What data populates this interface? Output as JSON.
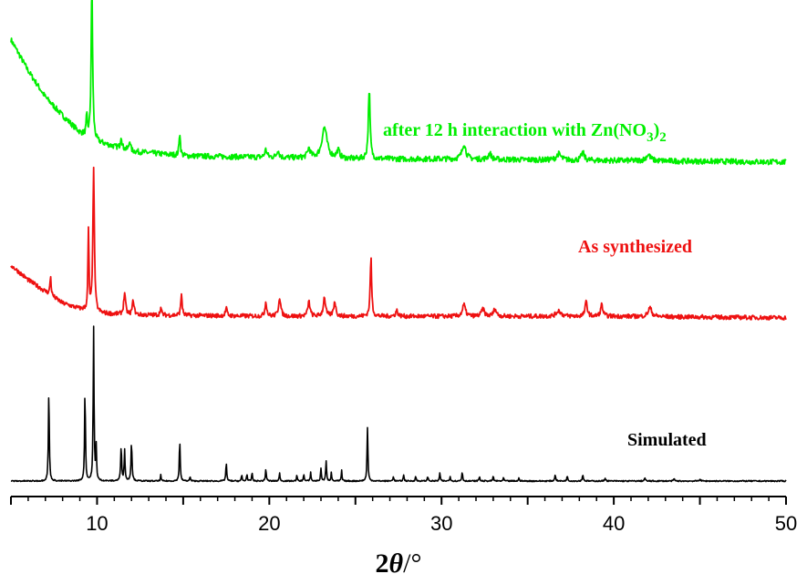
{
  "chart_data": {
    "type": "line",
    "title": "",
    "xlabel_main": "2",
    "xlabel_theta": "θ",
    "xlabel_unit": "/°",
    "ylabel": "",
    "xlim": [
      5,
      50
    ],
    "x_ticks": [
      10,
      20,
      30,
      40,
      50
    ],
    "x_minor_step": 1,
    "y_axis_shown": false,
    "grid": false,
    "series": [
      {
        "name": "after 12 h interaction with Zn(NO3)2",
        "label_main": "after 12 h interaction with Zn(NO",
        "label_sub": "3",
        "label_close": ")",
        "label_sub2": "2",
        "color": "#00ee00",
        "baseline": [
          [
            5,
            0.82
          ],
          [
            6,
            0.62
          ],
          [
            7,
            0.45
          ],
          [
            8,
            0.33
          ],
          [
            9,
            0.22
          ],
          [
            10,
            0.16
          ],
          [
            12,
            0.1
          ],
          [
            15,
            0.07
          ],
          [
            20,
            0.06
          ],
          [
            25,
            0.05
          ],
          [
            30,
            0.05
          ],
          [
            40,
            0.04
          ],
          [
            50,
            0.03
          ]
        ],
        "peaks": [
          [
            9.4,
            0.12,
            0.08
          ],
          [
            9.7,
            1.0,
            0.1
          ],
          [
            11.4,
            0.08,
            0.1
          ],
          [
            11.9,
            0.07,
            0.1
          ],
          [
            14.8,
            0.15,
            0.09
          ],
          [
            19.8,
            0.05,
            0.15
          ],
          [
            20.5,
            0.05,
            0.15
          ],
          [
            22.3,
            0.06,
            0.2
          ],
          [
            23.2,
            0.2,
            0.35
          ],
          [
            24.0,
            0.05,
            0.2
          ],
          [
            25.8,
            0.45,
            0.12
          ],
          [
            31.3,
            0.1,
            0.25
          ],
          [
            32.8,
            0.04,
            0.2
          ],
          [
            36.8,
            0.04,
            0.3
          ],
          [
            38.2,
            0.05,
            0.2
          ],
          [
            42.0,
            0.04,
            0.3
          ]
        ],
        "noise": 0.018
      },
      {
        "name": "As synthesized",
        "color": "#ee1111",
        "baseline": [
          [
            5,
            0.38
          ],
          [
            6,
            0.28
          ],
          [
            7,
            0.2
          ],
          [
            8,
            0.12
          ],
          [
            9,
            0.08
          ],
          [
            10,
            0.05
          ],
          [
            12,
            0.04
          ],
          [
            20,
            0.03
          ],
          [
            30,
            0.03
          ],
          [
            40,
            0.03
          ],
          [
            50,
            0.02
          ]
        ],
        "peaks": [
          [
            7.3,
            0.13,
            0.08
          ],
          [
            9.5,
            0.55,
            0.07
          ],
          [
            9.8,
            1.0,
            0.1
          ],
          [
            11.6,
            0.15,
            0.12
          ],
          [
            12.1,
            0.1,
            0.12
          ],
          [
            13.7,
            0.05,
            0.1
          ],
          [
            14.9,
            0.15,
            0.09
          ],
          [
            17.5,
            0.05,
            0.12
          ],
          [
            19.8,
            0.1,
            0.12
          ],
          [
            20.6,
            0.13,
            0.15
          ],
          [
            22.3,
            0.1,
            0.15
          ],
          [
            23.2,
            0.13,
            0.15
          ],
          [
            23.8,
            0.1,
            0.15
          ],
          [
            25.9,
            0.4,
            0.1
          ],
          [
            27.4,
            0.04,
            0.15
          ],
          [
            31.3,
            0.08,
            0.2
          ],
          [
            32.4,
            0.05,
            0.2
          ],
          [
            33.1,
            0.05,
            0.2
          ],
          [
            36.8,
            0.04,
            0.3
          ],
          [
            38.4,
            0.1,
            0.15
          ],
          [
            39.3,
            0.08,
            0.15
          ],
          [
            42.1,
            0.06,
            0.25
          ]
        ],
        "noise": 0.015
      },
      {
        "name": "Simulated",
        "color": "#000000",
        "baseline": [
          [
            5,
            0.0
          ],
          [
            50,
            0.0
          ]
        ],
        "peaks": [
          [
            7.2,
            0.6,
            0.06
          ],
          [
            9.3,
            0.6,
            0.06
          ],
          [
            9.8,
            1.0,
            0.06
          ],
          [
            9.95,
            0.22,
            0.05
          ],
          [
            11.4,
            0.22,
            0.07
          ],
          [
            11.6,
            0.2,
            0.06
          ],
          [
            12.0,
            0.25,
            0.07
          ],
          [
            13.7,
            0.04,
            0.05
          ],
          [
            14.8,
            0.27,
            0.06
          ],
          [
            15.4,
            0.03,
            0.05
          ],
          [
            17.5,
            0.12,
            0.06
          ],
          [
            18.4,
            0.04,
            0.05
          ],
          [
            18.7,
            0.05,
            0.05
          ],
          [
            19.0,
            0.06,
            0.05
          ],
          [
            19.8,
            0.08,
            0.06
          ],
          [
            20.6,
            0.05,
            0.06
          ],
          [
            21.6,
            0.04,
            0.05
          ],
          [
            22.0,
            0.05,
            0.05
          ],
          [
            22.4,
            0.06,
            0.05
          ],
          [
            23.0,
            0.08,
            0.06
          ],
          [
            23.3,
            0.13,
            0.06
          ],
          [
            23.6,
            0.06,
            0.05
          ],
          [
            24.2,
            0.07,
            0.05
          ],
          [
            25.7,
            0.35,
            0.06
          ],
          [
            27.2,
            0.03,
            0.06
          ],
          [
            27.8,
            0.04,
            0.06
          ],
          [
            28.5,
            0.03,
            0.06
          ],
          [
            29.2,
            0.03,
            0.06
          ],
          [
            29.9,
            0.05,
            0.06
          ],
          [
            30.5,
            0.03,
            0.06
          ],
          [
            31.2,
            0.06,
            0.06
          ],
          [
            32.2,
            0.03,
            0.06
          ],
          [
            33.0,
            0.03,
            0.06
          ],
          [
            33.6,
            0.02,
            0.06
          ],
          [
            34.5,
            0.02,
            0.06
          ],
          [
            36.6,
            0.04,
            0.07
          ],
          [
            37.3,
            0.03,
            0.07
          ],
          [
            38.2,
            0.04,
            0.07
          ],
          [
            39.5,
            0.02,
            0.07
          ],
          [
            41.8,
            0.02,
            0.07
          ],
          [
            43.5,
            0.015,
            0.07
          ],
          [
            45.0,
            0.015,
            0.07
          ]
        ],
        "noise": 0.004
      }
    ]
  }
}
